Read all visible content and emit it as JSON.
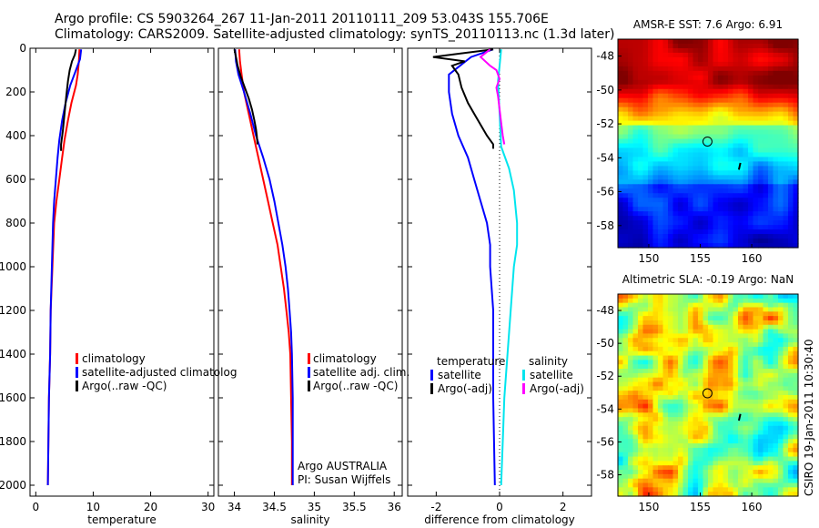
{
  "header": {
    "line1": "Argo profile: CS 5903264_267 11-Jan-2011 20110111_209 53.043S 155.706E",
    "line2": "Climatology: CARS2009. Satellite-adjusted climatology: synTS_20110113.nc (1.3d later)"
  },
  "side_text": "CSIRO 19-Jan-2011 10:30:40",
  "colors": {
    "climatology": "#ff0000",
    "satellite": "#0000ff",
    "argo": "#000000",
    "temp_diff_sat": "#00e5ee",
    "sal_diff_argo": "#ff00ff",
    "sal_diff_sat": "#22ffff"
  },
  "chart_data": [
    {
      "type": "line",
      "xlabel": "temperature",
      "xlim": [
        -1,
        31
      ],
      "ylim": [
        2050,
        0
      ],
      "xticks": [
        0,
        10,
        20,
        30
      ],
      "yticks": [
        0,
        200,
        400,
        600,
        800,
        1000,
        1200,
        1400,
        1600,
        1800,
        2000
      ],
      "legend": [
        "climatology",
        "satellite-adjusted climatolog",
        "Argo(..raw -QC)"
      ],
      "series": [
        {
          "name": "climatology",
          "color": "climatology",
          "points": [
            [
              7.6,
              5
            ],
            [
              7.5,
              60
            ],
            [
              7.3,
              120
            ],
            [
              7.0,
              170
            ],
            [
              6.2,
              250
            ],
            [
              5.6,
              330
            ],
            [
              5.0,
              420
            ],
            [
              4.6,
              500
            ],
            [
              4.1,
              600
            ],
            [
              3.6,
              700
            ],
            [
              3.2,
              800
            ],
            [
              2.9,
              1000
            ],
            [
              2.6,
              1200
            ],
            [
              2.5,
              1400
            ],
            [
              2.3,
              1600
            ],
            [
              2.2,
              1800
            ],
            [
              2.1,
              2000
            ]
          ]
        },
        {
          "name": "satellite-adjusted climatolog",
          "color": "satellite",
          "points": [
            [
              7.9,
              5
            ],
            [
              7.7,
              50
            ],
            [
              7.0,
              100
            ],
            [
              6.0,
              170
            ],
            [
              5.2,
              250
            ],
            [
              4.6,
              330
            ],
            [
              4.1,
              420
            ],
            [
              3.8,
              500
            ],
            [
              3.5,
              600
            ],
            [
              3.2,
              700
            ],
            [
              3.0,
              800
            ],
            [
              2.8,
              1000
            ],
            [
              2.6,
              1200
            ],
            [
              2.5,
              1400
            ],
            [
              2.3,
              1600
            ],
            [
              2.2,
              1800
            ],
            [
              2.1,
              2000
            ]
          ]
        },
        {
          "name": "Argo(..raw -QC)",
          "color": "argo",
          "points": [
            [
              7.0,
              5
            ],
            [
              6.8,
              30
            ],
            [
              6.3,
              60
            ],
            [
              5.9,
              100
            ],
            [
              5.6,
              150
            ],
            [
              5.3,
              220
            ],
            [
              5.0,
              300
            ],
            [
              4.7,
              380
            ],
            [
              4.4,
              440
            ],
            [
              4.4,
              470
            ]
          ]
        }
      ]
    },
    {
      "type": "line",
      "xlabel": "salinity",
      "xlim": [
        33.8,
        36.1
      ],
      "ylim": [
        2050,
        0
      ],
      "xticks": [
        34,
        34.5,
        35,
        35.5,
        36
      ],
      "yticks": [
        0,
        200,
        400,
        600,
        800,
        1000,
        1200,
        1400,
        1600,
        1800,
        2000
      ],
      "legend": [
        "climatology",
        "satellite adj. clim.",
        "Argo(..raw -QC)"
      ],
      "annotations": [
        "Argo AUSTRALIA",
        "PI: Susan Wijffels"
      ],
      "series": [
        {
          "name": "climatology",
          "color": "climatology",
          "points": [
            [
              34.06,
              5
            ],
            [
              34.07,
              60
            ],
            [
              34.09,
              120
            ],
            [
              34.12,
              200
            ],
            [
              34.18,
              300
            ],
            [
              34.24,
              400
            ],
            [
              34.3,
              500
            ],
            [
              34.36,
              600
            ],
            [
              34.42,
              700
            ],
            [
              34.48,
              800
            ],
            [
              34.54,
              900
            ],
            [
              34.58,
              1000
            ],
            [
              34.62,
              1100
            ],
            [
              34.65,
              1200
            ],
            [
              34.68,
              1300
            ],
            [
              34.7,
              1400
            ],
            [
              34.71,
              1600
            ],
            [
              34.72,
              1800
            ],
            [
              34.72,
              2000
            ]
          ]
        },
        {
          "name": "satellite adj. clim.",
          "color": "satellite",
          "points": [
            [
              34.01,
              5
            ],
            [
              34.02,
              60
            ],
            [
              34.05,
              120
            ],
            [
              34.12,
              200
            ],
            [
              34.2,
              300
            ],
            [
              34.27,
              400
            ],
            [
              34.36,
              500
            ],
            [
              34.44,
              600
            ],
            [
              34.5,
              700
            ],
            [
              34.55,
              800
            ],
            [
              34.6,
              900
            ],
            [
              34.64,
              1000
            ],
            [
              34.67,
              1100
            ],
            [
              34.69,
              1200
            ],
            [
              34.71,
              1300
            ],
            [
              34.72,
              1400
            ],
            [
              34.73,
              1600
            ],
            [
              34.73,
              1800
            ],
            [
              34.73,
              2000
            ]
          ]
        },
        {
          "name": "Argo(..raw -QC)",
          "color": "argo",
          "points": [
            [
              34.0,
              5
            ],
            [
              34.02,
              40
            ],
            [
              34.04,
              80
            ],
            [
              34.08,
              130
            ],
            [
              34.13,
              180
            ],
            [
              34.18,
              230
            ],
            [
              34.22,
              280
            ],
            [
              34.25,
              330
            ],
            [
              34.27,
              370
            ],
            [
              34.28,
              400
            ],
            [
              34.29,
              440
            ]
          ]
        }
      ]
    },
    {
      "type": "line",
      "xlabel": "difference from climatology",
      "xlim": [
        -2.9,
        2.9
      ],
      "ylim": [
        2050,
        0
      ],
      "xticks": [
        -2,
        0,
        2
      ],
      "yticks": [
        0,
        200,
        400,
        600,
        800,
        1000,
        1200,
        1400,
        1600,
        1800,
        2000
      ],
      "legend_titles": [
        "temperature",
        "salinity"
      ],
      "legend": [
        "satellite",
        "Argo(-adj)",
        "satellite",
        "Argo(-adj)"
      ],
      "series": [
        {
          "name": "temperature satellite",
          "color": "satellite",
          "points": [
            [
              -0.2,
              5
            ],
            [
              -0.9,
              40
            ],
            [
              -1.6,
              120
            ],
            [
              -1.6,
              200
            ],
            [
              -1.5,
              300
            ],
            [
              -1.3,
              400
            ],
            [
              -1.0,
              500
            ],
            [
              -0.8,
              600
            ],
            [
              -0.6,
              700
            ],
            [
              -0.4,
              800
            ],
            [
              -0.3,
              900
            ],
            [
              -0.3,
              1000
            ],
            [
              -0.2,
              1200
            ],
            [
              -0.2,
              1400
            ],
            [
              -0.2,
              1600
            ],
            [
              -0.15,
              2000
            ]
          ]
        },
        {
          "name": "temperature Argo(-adj)",
          "color": "argo",
          "points": [
            [
              -0.2,
              5
            ],
            [
              -2.1,
              40
            ],
            [
              -1.1,
              60
            ],
            [
              -1.5,
              80
            ],
            [
              -1.3,
              120
            ],
            [
              -1.2,
              180
            ],
            [
              -1.0,
              250
            ],
            [
              -0.8,
              300
            ],
            [
              -0.6,
              350
            ],
            [
              -0.4,
              400
            ],
            [
              -0.2,
              440
            ],
            [
              -0.2,
              460
            ]
          ]
        },
        {
          "name": "salinity satellite",
          "color": "temp_diff_sat",
          "points": [
            [
              0.05,
              5
            ],
            [
              0.0,
              80
            ],
            [
              -0.05,
              150
            ],
            [
              0.0,
              300
            ],
            [
              0.05,
              450
            ],
            [
              0.3,
              550
            ],
            [
              0.45,
              650
            ],
            [
              0.55,
              800
            ],
            [
              0.55,
              900
            ],
            [
              0.45,
              1000
            ],
            [
              0.35,
              1200
            ],
            [
              0.25,
              1400
            ],
            [
              0.15,
              1600
            ],
            [
              0.1,
              1800
            ],
            [
              0.05,
              2000
            ]
          ]
        },
        {
          "name": "salinity Argo(-adj)",
          "color": "sal_diff_argo",
          "points": [
            [
              -0.3,
              5
            ],
            [
              -0.6,
              40
            ],
            [
              -0.3,
              80
            ],
            [
              -0.1,
              100
            ],
            [
              0.0,
              140
            ],
            [
              -0.1,
              180
            ],
            [
              -0.05,
              220
            ],
            [
              0.0,
              280
            ],
            [
              0.05,
              340
            ],
            [
              0.1,
              400
            ],
            [
              0.15,
              440
            ]
          ]
        }
      ]
    },
    {
      "type": "heatmap",
      "title": "AMSR-E SST: 7.6 Argo: 6.91",
      "xlim": [
        147,
        164.5
      ],
      "ylim": [
        -59.3,
        -47
      ],
      "xticks": [
        150,
        155,
        160
      ],
      "yticks": [
        -48,
        -50,
        -52,
        -54,
        -56,
        -58
      ],
      "colormap": "jet",
      "profile_marker": [
        155.7,
        -53.04
      ]
    },
    {
      "type": "heatmap",
      "title": "Altimetric SLA: -0.19 Argo: NaN",
      "xlim": [
        147,
        164.5
      ],
      "ylim": [
        -59.3,
        -47
      ],
      "xticks": [
        150,
        155,
        160
      ],
      "yticks": [
        -48,
        -50,
        -52,
        -54,
        -56,
        -58
      ],
      "colormap": "jet",
      "profile_marker": [
        155.7,
        -53.04
      ]
    }
  ]
}
